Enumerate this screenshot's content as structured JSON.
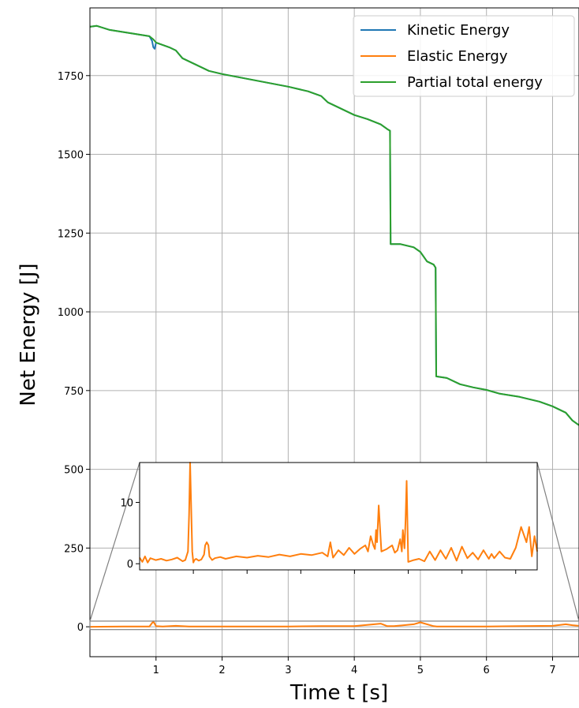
{
  "colors": {
    "kinetic": "#1f77b4",
    "elastic": "#ff7f0e",
    "total": "#2ca02c",
    "grid": "#b0b0b0",
    "zoom_connector": "#808080"
  },
  "chart_data": [
    {
      "type": "line",
      "role": "main",
      "title": "",
      "xlabel": "Time t [s]",
      "ylabel": "Net Energy [J]",
      "xlim": [
        0,
        7.4
      ],
      "ylim": [
        -95,
        1965
      ],
      "xticks": [
        1,
        2,
        3,
        4,
        5,
        6,
        7
      ],
      "xtick_labels": [
        "1",
        "2",
        "3",
        "4",
        "5",
        "6",
        "7"
      ],
      "yticks": [
        0,
        250,
        500,
        750,
        1000,
        1250,
        1500,
        1750
      ],
      "ytick_labels": [
        "0",
        "250",
        "500",
        "750",
        "1000",
        "1250",
        "1500",
        "1750"
      ],
      "grid": true,
      "legend": "top-right",
      "series": [
        {
          "name": "Kinetic Energy",
          "color": "#1f77b4",
          "x": [
            0.0,
            0.1,
            0.3,
            0.6,
            0.9,
            0.94,
            0.96,
            0.98,
            1.0,
            1.2,
            1.3,
            1.4,
            1.6,
            1.8,
            2.0,
            2.5,
            3.0,
            3.3,
            3.5,
            3.6,
            3.8,
            4.0,
            4.2,
            4.4,
            4.5,
            4.54,
            4.55,
            4.7,
            4.9,
            5.0,
            5.1,
            5.2,
            5.23,
            5.24,
            5.4,
            5.6,
            5.8,
            6.0,
            6.2,
            6.5,
            6.8,
            7.0,
            7.2,
            7.3,
            7.4
          ],
          "y": [
            1905,
            1908,
            1895,
            1885,
            1875,
            1860,
            1840,
            1835,
            1855,
            1840,
            1830,
            1805,
            1785,
            1765,
            1755,
            1735,
            1715,
            1700,
            1685,
            1665,
            1645,
            1625,
            1612,
            1595,
            1580,
            1575,
            1215,
            1215,
            1205,
            1190,
            1160,
            1150,
            1140,
            795,
            790,
            770,
            760,
            752,
            740,
            730,
            715,
            700,
            680,
            655,
            640
          ]
        },
        {
          "name": "Elastic Energy",
          "color": "#ff7f0e",
          "x": [
            0.0,
            0.5,
            0.9,
            0.96,
            1.0,
            1.1,
            1.3,
            1.5,
            2.0,
            3.0,
            3.5,
            4.0,
            4.4,
            4.5,
            4.6,
            4.9,
            5.0,
            5.2,
            5.25,
            5.3,
            6.0,
            6.5,
            7.0,
            7.2,
            7.3,
            7.4
          ],
          "y": [
            0,
            1,
            1,
            17,
            2,
            1,
            3,
            1,
            1,
            1,
            2,
            2,
            10,
            2,
            2,
            8,
            14,
            2,
            1,
            1,
            1,
            2,
            3,
            8,
            5,
            3
          ]
        },
        {
          "name": "Partial total energy",
          "color": "#2ca02c",
          "x": [
            0.0,
            0.1,
            0.3,
            0.6,
            0.9,
            0.96,
            1.0,
            1.2,
            1.3,
            1.4,
            1.6,
            1.8,
            2.0,
            2.5,
            3.0,
            3.3,
            3.5,
            3.6,
            3.8,
            4.0,
            4.2,
            4.4,
            4.5,
            4.54,
            4.55,
            4.7,
            4.9,
            5.0,
            5.1,
            5.2,
            5.23,
            5.24,
            5.4,
            5.6,
            5.8,
            6.0,
            6.2,
            6.5,
            6.8,
            7.0,
            7.2,
            7.3,
            7.4
          ],
          "y": [
            1905,
            1908,
            1895,
            1885,
            1875,
            1865,
            1855,
            1840,
            1830,
            1805,
            1785,
            1765,
            1755,
            1735,
            1715,
            1700,
            1685,
            1665,
            1645,
            1625,
            1612,
            1595,
            1580,
            1575,
            1215,
            1215,
            1205,
            1190,
            1160,
            1150,
            1140,
            795,
            790,
            770,
            760,
            752,
            740,
            730,
            715,
            700,
            680,
            655,
            640
          ]
        }
      ]
    },
    {
      "type": "line",
      "role": "inset",
      "title": "",
      "xlabel": "",
      "ylabel": "",
      "xlim": [
        0,
        7.4
      ],
      "ylim": [
        -1,
        16.5
      ],
      "yticks": [
        0,
        10
      ],
      "ytick_labels": [
        "0",
        "10"
      ],
      "xticks": [
        1,
        2,
        3,
        4,
        5,
        6,
        7
      ],
      "xtick_labels": [],
      "grid": false,
      "zoom_region": {
        "ylim": [
          -9,
          18
        ]
      },
      "series": [
        {
          "name": "Elastic Energy",
          "color": "#ff7f0e",
          "x": [
            0.0,
            0.05,
            0.1,
            0.15,
            0.2,
            0.3,
            0.4,
            0.5,
            0.6,
            0.7,
            0.8,
            0.85,
            0.9,
            0.92,
            0.94,
            0.96,
            0.98,
            1.0,
            1.02,
            1.05,
            1.1,
            1.15,
            1.2,
            1.22,
            1.25,
            1.28,
            1.3,
            1.35,
            1.4,
            1.5,
            1.6,
            1.8,
            2.0,
            2.2,
            2.4,
            2.6,
            2.8,
            3.0,
            3.2,
            3.4,
            3.5,
            3.55,
            3.6,
            3.7,
            3.8,
            3.9,
            4.0,
            4.1,
            4.2,
            4.25,
            4.3,
            4.35,
            4.38,
            4.4,
            4.42,
            4.45,
            4.5,
            4.6,
            4.7,
            4.75,
            4.8,
            4.85,
            4.88,
            4.9,
            4.93,
            4.95,
            4.97,
            5.0,
            5.1,
            5.2,
            5.3,
            5.4,
            5.5,
            5.6,
            5.7,
            5.8,
            5.9,
            6.0,
            6.1,
            6.2,
            6.3,
            6.4,
            6.5,
            6.55,
            6.6,
            6.7,
            6.8,
            6.9,
            7.0,
            7.1,
            7.2,
            7.25,
            7.3,
            7.35,
            7.4
          ],
          "y": [
            1.0,
            0.3,
            1.2,
            0.2,
            0.9,
            0.6,
            0.8,
            0.5,
            0.7,
            1.0,
            0.4,
            0.6,
            2.0,
            8.0,
            16.5,
            9.0,
            2.0,
            0.2,
            0.6,
            0.8,
            0.5,
            0.7,
            1.5,
            3.0,
            3.5,
            3.0,
            1.2,
            0.6,
            0.9,
            1.1,
            0.8,
            1.2,
            1.0,
            1.3,
            1.1,
            1.5,
            1.2,
            1.6,
            1.4,
            1.8,
            1.2,
            3.5,
            1.0,
            2.2,
            1.4,
            2.6,
            1.6,
            2.4,
            3.0,
            2.0,
            4.5,
            3.0,
            2.4,
            5.5,
            3.5,
            9.5,
            2.0,
            2.4,
            3.0,
            1.8,
            2.2,
            4.0,
            2.0,
            5.5,
            2.5,
            7.0,
            13.5,
            0.3,
            0.6,
            0.8,
            0.4,
            2.0,
            0.6,
            2.2,
            0.8,
            2.6,
            0.5,
            2.8,
            0.9,
            1.8,
            0.7,
            2.2,
            0.8,
            1.6,
            0.9,
            2.0,
            1.0,
            0.8,
            2.6,
            6.0,
            3.5,
            6.0,
            1.2,
            4.5,
            2.0
          ]
        }
      ]
    }
  ]
}
